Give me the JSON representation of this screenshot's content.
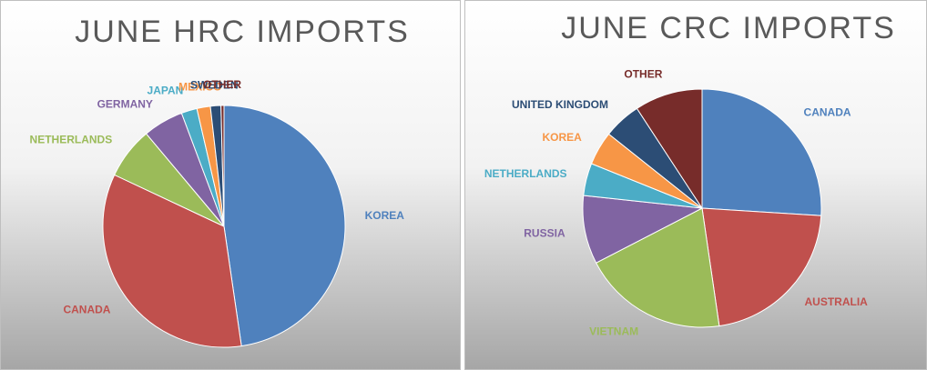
{
  "chart_data": [
    {
      "type": "pie",
      "title": "JUNE HRC IMPORTS",
      "categories": [
        "KOREA",
        "CANADA",
        "NETHERLANDS",
        "GERMANY",
        "JAPAN",
        "MEXICO",
        "SWEDEN",
        "OTHER"
      ],
      "values": [
        47.7,
        34.3,
        6.9,
        5.4,
        2.1,
        1.8,
        1.4,
        0.4
      ],
      "colors": [
        "#4f81bd",
        "#c0504d",
        "#9bbb59",
        "#8064a2",
        "#4bacc6",
        "#f79646",
        "#2c4d75",
        "#772c2a"
      ]
    },
    {
      "type": "pie",
      "title": "JUNE CRC IMPORTS",
      "categories": [
        "CANADA",
        "AUSTRALIA",
        "VIETNAM",
        "RUSSIA",
        "NETHERLANDS",
        "KOREA",
        "UNITED KINGDOM",
        "OTHER"
      ],
      "values": [
        26,
        21.7,
        19.7,
        9.3,
        4.4,
        4.6,
        5.1,
        9.2
      ],
      "colors": [
        "#4f81bd",
        "#c0504d",
        "#9bbb59",
        "#8064a2",
        "#4bacc6",
        "#f79646",
        "#2c4d75",
        "#772c2a"
      ]
    }
  ]
}
